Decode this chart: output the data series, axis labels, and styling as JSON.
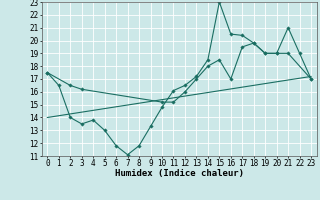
{
  "xlabel": "Humidex (Indice chaleur)",
  "xlim_min": -0.5,
  "xlim_max": 23.5,
  "ylim_min": 11,
  "ylim_max": 23,
  "yticks": [
    11,
    12,
    13,
    14,
    15,
    16,
    17,
    18,
    19,
    20,
    21,
    22,
    23
  ],
  "xticks": [
    0,
    1,
    2,
    3,
    4,
    5,
    6,
    7,
    8,
    9,
    10,
    11,
    12,
    13,
    14,
    15,
    16,
    17,
    18,
    19,
    20,
    21,
    22,
    23
  ],
  "bg_color": "#cce8e8",
  "line_color": "#1a6e62",
  "line1_x": [
    0,
    1,
    2,
    3,
    4,
    5,
    6,
    7,
    8,
    9,
    10,
    11,
    12,
    13,
    14,
    15,
    16,
    17,
    18,
    19,
    20,
    21,
    22,
    23
  ],
  "line1_y": [
    17.5,
    16.5,
    14.0,
    13.5,
    13.8,
    13.0,
    11.8,
    11.1,
    11.8,
    13.3,
    14.8,
    16.1,
    16.5,
    17.2,
    18.5,
    23.0,
    20.5,
    20.4,
    19.8,
    19.0,
    19.0,
    21.0,
    19.0,
    17.0
  ],
  "line2_x": [
    0,
    2,
    3,
    10,
    11,
    12,
    13,
    14,
    15,
    16,
    17,
    18,
    19,
    20,
    21,
    23
  ],
  "line2_y": [
    17.5,
    16.5,
    16.2,
    15.2,
    15.2,
    16.0,
    17.0,
    18.0,
    18.5,
    17.0,
    19.5,
    19.8,
    19.0,
    19.0,
    19.0,
    17.0
  ],
  "line3_x": [
    0,
    23
  ],
  "line3_y": [
    14.0,
    17.2
  ],
  "tick_fontsize": 5.5,
  "xlabel_fontsize": 6.5
}
